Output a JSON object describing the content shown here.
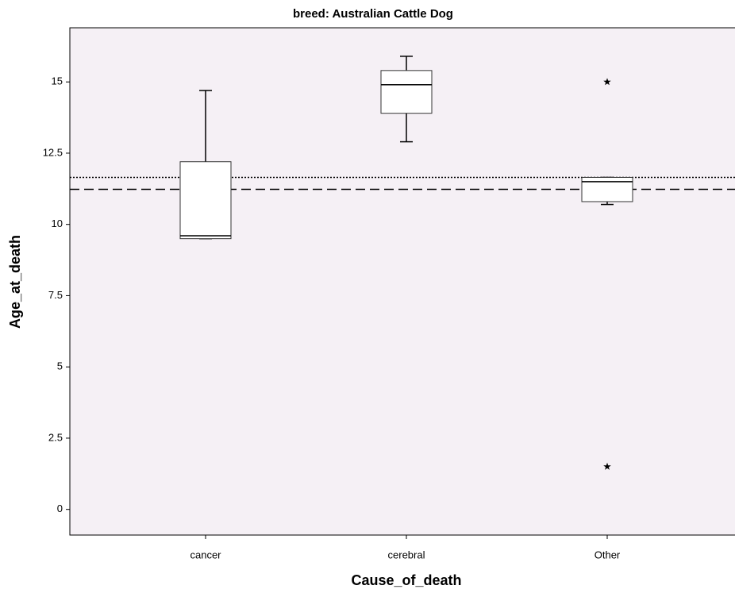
{
  "chart_data": {
    "type": "box",
    "title": "breed: Australian Cattle Dog",
    "xlabel": "Cause_of_death",
    "ylabel": "Age_at_death",
    "categories": [
      "cancer",
      "cerebral",
      "Other"
    ],
    "boxes": [
      {
        "min": 9.5,
        "q1": 9.5,
        "median": 9.6,
        "q3": 12.2,
        "max": 14.7,
        "outliers": []
      },
      {
        "min": 12.9,
        "q1": 13.9,
        "median": 14.9,
        "q3": 15.4,
        "max": 15.9,
        "outliers": []
      },
      {
        "min": 10.7,
        "q1": 10.8,
        "median": 11.5,
        "q3": 11.65,
        "max": 11.65,
        "outliers": [
          15,
          1.5
        ]
      }
    ],
    "reference_lines": [
      {
        "value": 11.65,
        "style": "dotted"
      },
      {
        "value": 11.23,
        "style": "dashed"
      }
    ],
    "ylim": [
      -0.9,
      16.9
    ],
    "yticks": [
      0,
      2.5,
      5,
      7.5,
      10,
      12.5,
      15
    ],
    "background": "#f5f0f5",
    "box_color": "#ffffff"
  }
}
